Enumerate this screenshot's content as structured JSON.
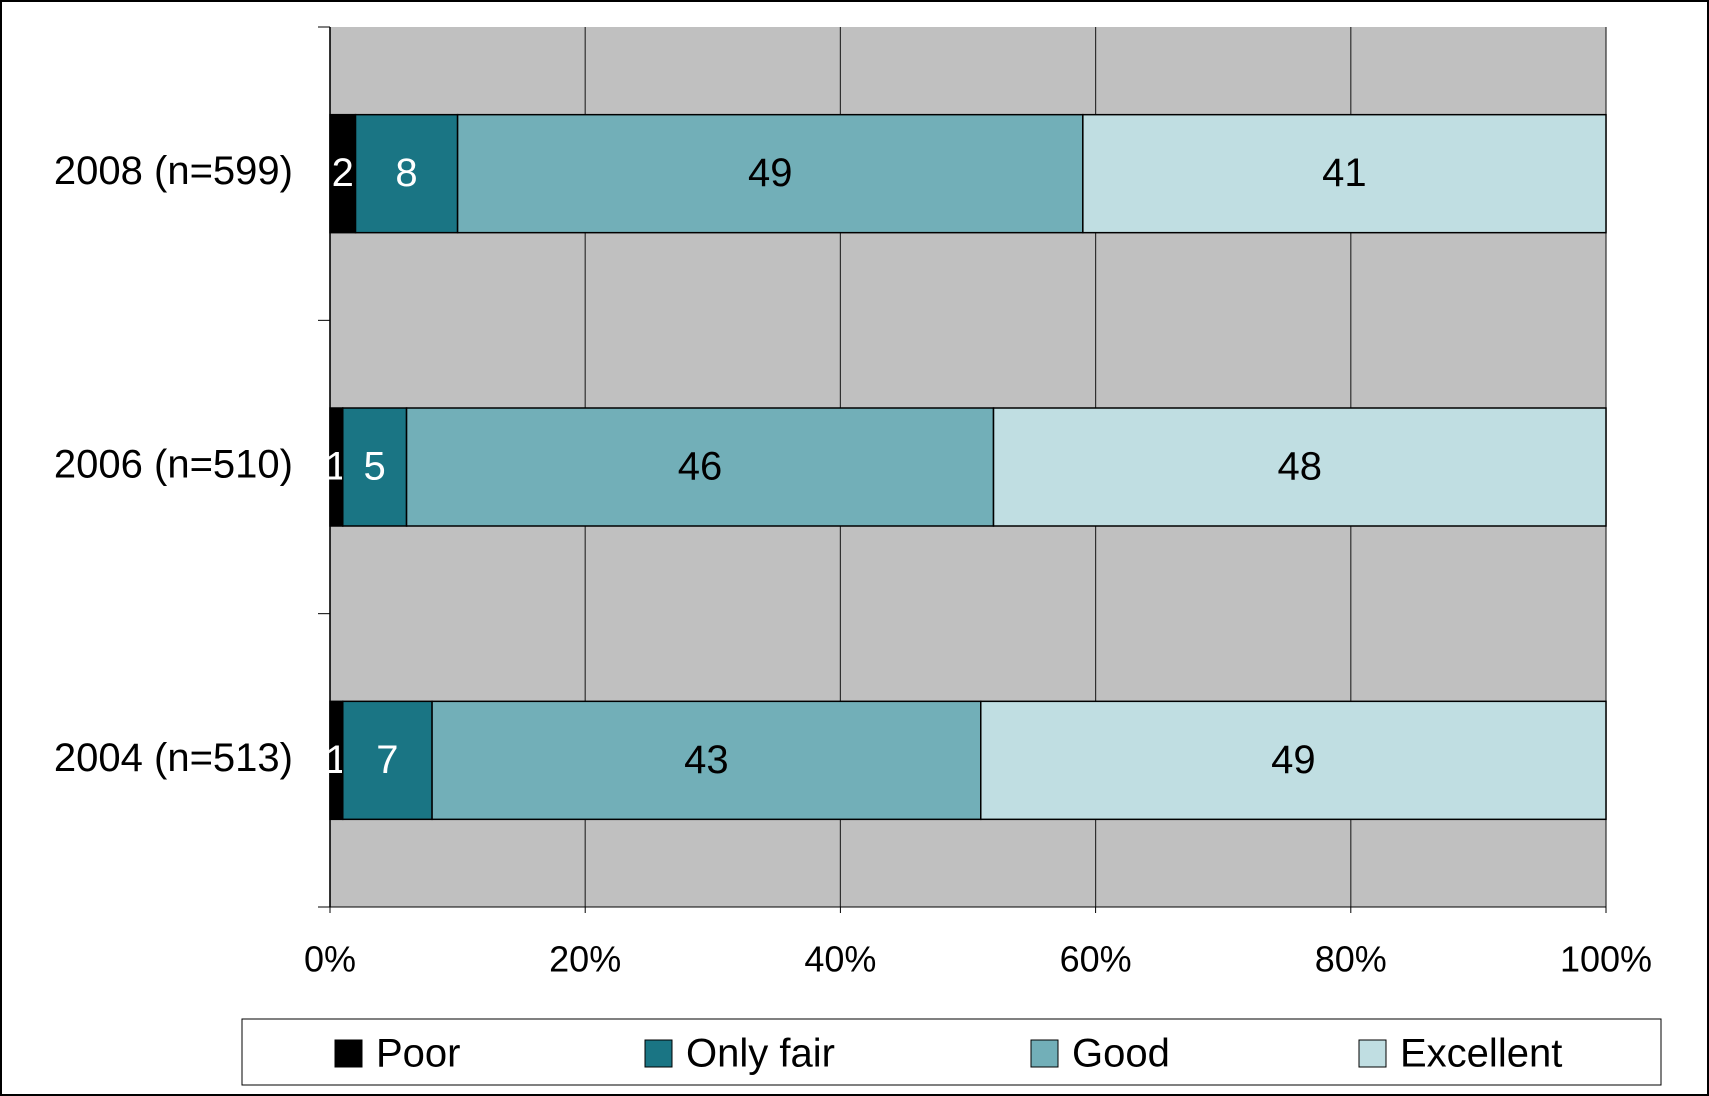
{
  "chart_data": {
    "type": "stacked_barh",
    "categories": [
      "2008 (n=599)",
      "2006 (n=510)",
      "2004 (n=513)"
    ],
    "series": [
      {
        "name": "Poor",
        "color": "#000000",
        "values": [
          2,
          1,
          1
        ]
      },
      {
        "name": "Only fair",
        "color": "#1a7584",
        "values": [
          8,
          5,
          7
        ]
      },
      {
        "name": "Good",
        "color": "#72afb8",
        "values": [
          49,
          46,
          43
        ]
      },
      {
        "name": "Excellent",
        "color": "#c0dee2",
        "values": [
          41,
          48,
          49
        ]
      }
    ],
    "xlim": [
      0,
      100
    ],
    "xticks": [
      {
        "value": 0,
        "label": "0%"
      },
      {
        "value": 20,
        "label": "20%"
      },
      {
        "value": 40,
        "label": "40%"
      },
      {
        "value": 60,
        "label": "60%"
      },
      {
        "value": 80,
        "label": "80%"
      },
      {
        "value": 100,
        "label": "100%"
      }
    ],
    "grid": true,
    "legend": "bottom"
  }
}
